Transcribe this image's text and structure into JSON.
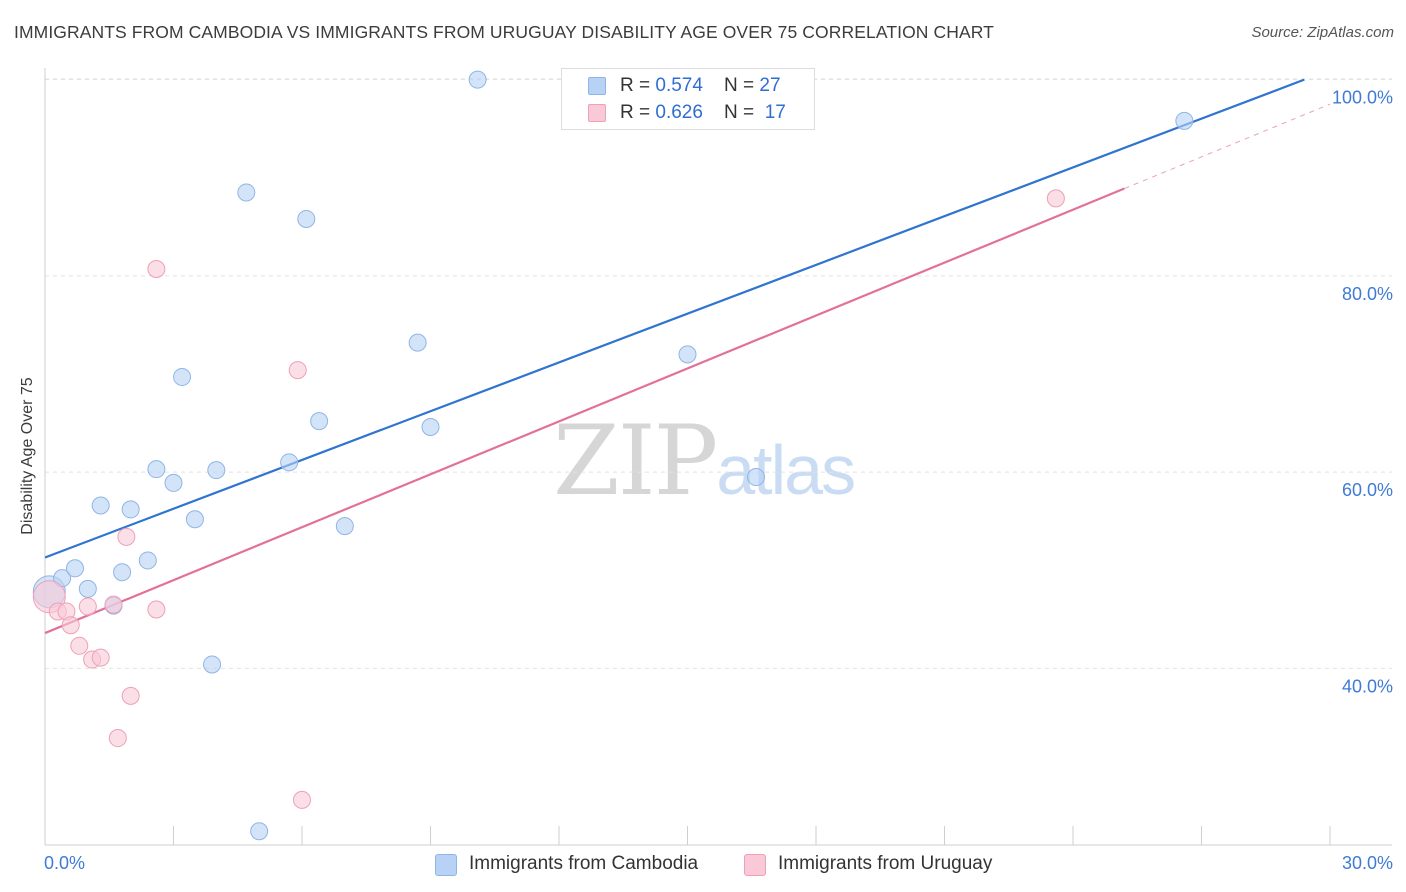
{
  "title": "IMMIGRANTS FROM CAMBODIA VS IMMIGRANTS FROM URUGUAY DISABILITY AGE OVER 75 CORRELATION CHART",
  "source": "Source: ZipAtlas.com",
  "watermark": {
    "zip": "ZIP",
    "atlas": "atlas"
  },
  "colors": {
    "cambodia_fill": "#b7d2f4",
    "cambodia_stroke": "#8fb5e6",
    "cambodia_line": "#2f74d0",
    "uruguay_fill": "#f9c9d7",
    "uruguay_stroke": "#ef9fb8",
    "uruguay_line": "#e2719a",
    "tick_label": "#3f7bd4",
    "grid": "#e2e2e2"
  },
  "legend": {
    "rows": [
      {
        "r_label": "R = ",
        "r_value": "0.574",
        "n_label": "N = ",
        "n_value": "27"
      },
      {
        "r_label": "R = ",
        "r_value": "0.626",
        "n_label": "N = ",
        "n_value": "17"
      }
    ]
  },
  "chart_data": {
    "type": "scatter",
    "title": "IMMIGRANTS FROM CAMBODIA VS IMMIGRANTS FROM URUGUAY DISABILITY AGE OVER 75 CORRELATION CHART",
    "xlabel": "",
    "ylabel": "Disability Age Over 75",
    "xlim": [
      0,
      30
    ],
    "ylim": [
      22,
      102
    ],
    "x_tick_labels": [
      "0.0%",
      "30.0%"
    ],
    "y_ticks": [
      40,
      60,
      80,
      100
    ],
    "y_tick_labels": [
      "40.0%",
      "60.0%",
      "80.0%",
      "100.0%"
    ],
    "grid": true,
    "legend_position": "top-center and bottom",
    "series": [
      {
        "name": "Immigrants from Cambodia",
        "color": "#b7d2f4",
        "points": [
          {
            "x": 0.1,
            "y": 47.8,
            "size": 16
          },
          {
            "x": 0.4,
            "y": 49.2
          },
          {
            "x": 0.7,
            "y": 50.2
          },
          {
            "x": 1.0,
            "y": 48.1
          },
          {
            "x": 1.3,
            "y": 56.6
          },
          {
            "x": 1.6,
            "y": 46.4
          },
          {
            "x": 1.8,
            "y": 49.8
          },
          {
            "x": 2.0,
            "y": 56.2
          },
          {
            "x": 2.4,
            "y": 51.0
          },
          {
            "x": 2.6,
            "y": 60.3
          },
          {
            "x": 3.0,
            "y": 58.9
          },
          {
            "x": 3.2,
            "y": 69.7
          },
          {
            "x": 3.5,
            "y": 55.2
          },
          {
            "x": 3.9,
            "y": 40.4
          },
          {
            "x": 4.0,
            "y": 60.2
          },
          {
            "x": 4.7,
            "y": 88.5
          },
          {
            "x": 5.0,
            "y": 23.4
          },
          {
            "x": 5.7,
            "y": 61.0
          },
          {
            "x": 6.1,
            "y": 85.8
          },
          {
            "x": 6.4,
            "y": 65.2
          },
          {
            "x": 7.0,
            "y": 54.5
          },
          {
            "x": 8.7,
            "y": 73.2
          },
          {
            "x": 9.0,
            "y": 64.6
          },
          {
            "x": 10.1,
            "y": 100.0
          },
          {
            "x": 15.0,
            "y": 72.0
          },
          {
            "x": 16.6,
            "y": 59.5
          },
          {
            "x": 26.6,
            "y": 95.8
          }
        ],
        "trend": {
          "x": [
            0,
            29.4
          ],
          "y": [
            51.3,
            100.0
          ]
        }
      },
      {
        "name": "Immigrants from Uruguay",
        "color": "#f9c9d7",
        "points": [
          {
            "x": 0.1,
            "y": 47.3,
            "size": 16
          },
          {
            "x": 0.3,
            "y": 45.8
          },
          {
            "x": 0.5,
            "y": 45.8
          },
          {
            "x": 0.6,
            "y": 44.4
          },
          {
            "x": 0.8,
            "y": 42.3
          },
          {
            "x": 1.0,
            "y": 46.3
          },
          {
            "x": 1.1,
            "y": 40.9
          },
          {
            "x": 1.3,
            "y": 41.1
          },
          {
            "x": 1.6,
            "y": 46.5
          },
          {
            "x": 1.7,
            "y": 32.9
          },
          {
            "x": 1.9,
            "y": 53.4
          },
          {
            "x": 2.0,
            "y": 37.2
          },
          {
            "x": 2.6,
            "y": 80.7
          },
          {
            "x": 2.6,
            "y": 46.0
          },
          {
            "x": 5.9,
            "y": 70.4
          },
          {
            "x": 6.0,
            "y": 26.6
          },
          {
            "x": 23.6,
            "y": 87.9
          }
        ],
        "trend": {
          "x": [
            0,
            25.2
          ],
          "y": [
            43.6,
            88.9
          ]
        },
        "trend_extension": {
          "x": [
            25.2,
            30
          ],
          "y": [
            88.9,
            97.5
          ]
        }
      }
    ]
  }
}
